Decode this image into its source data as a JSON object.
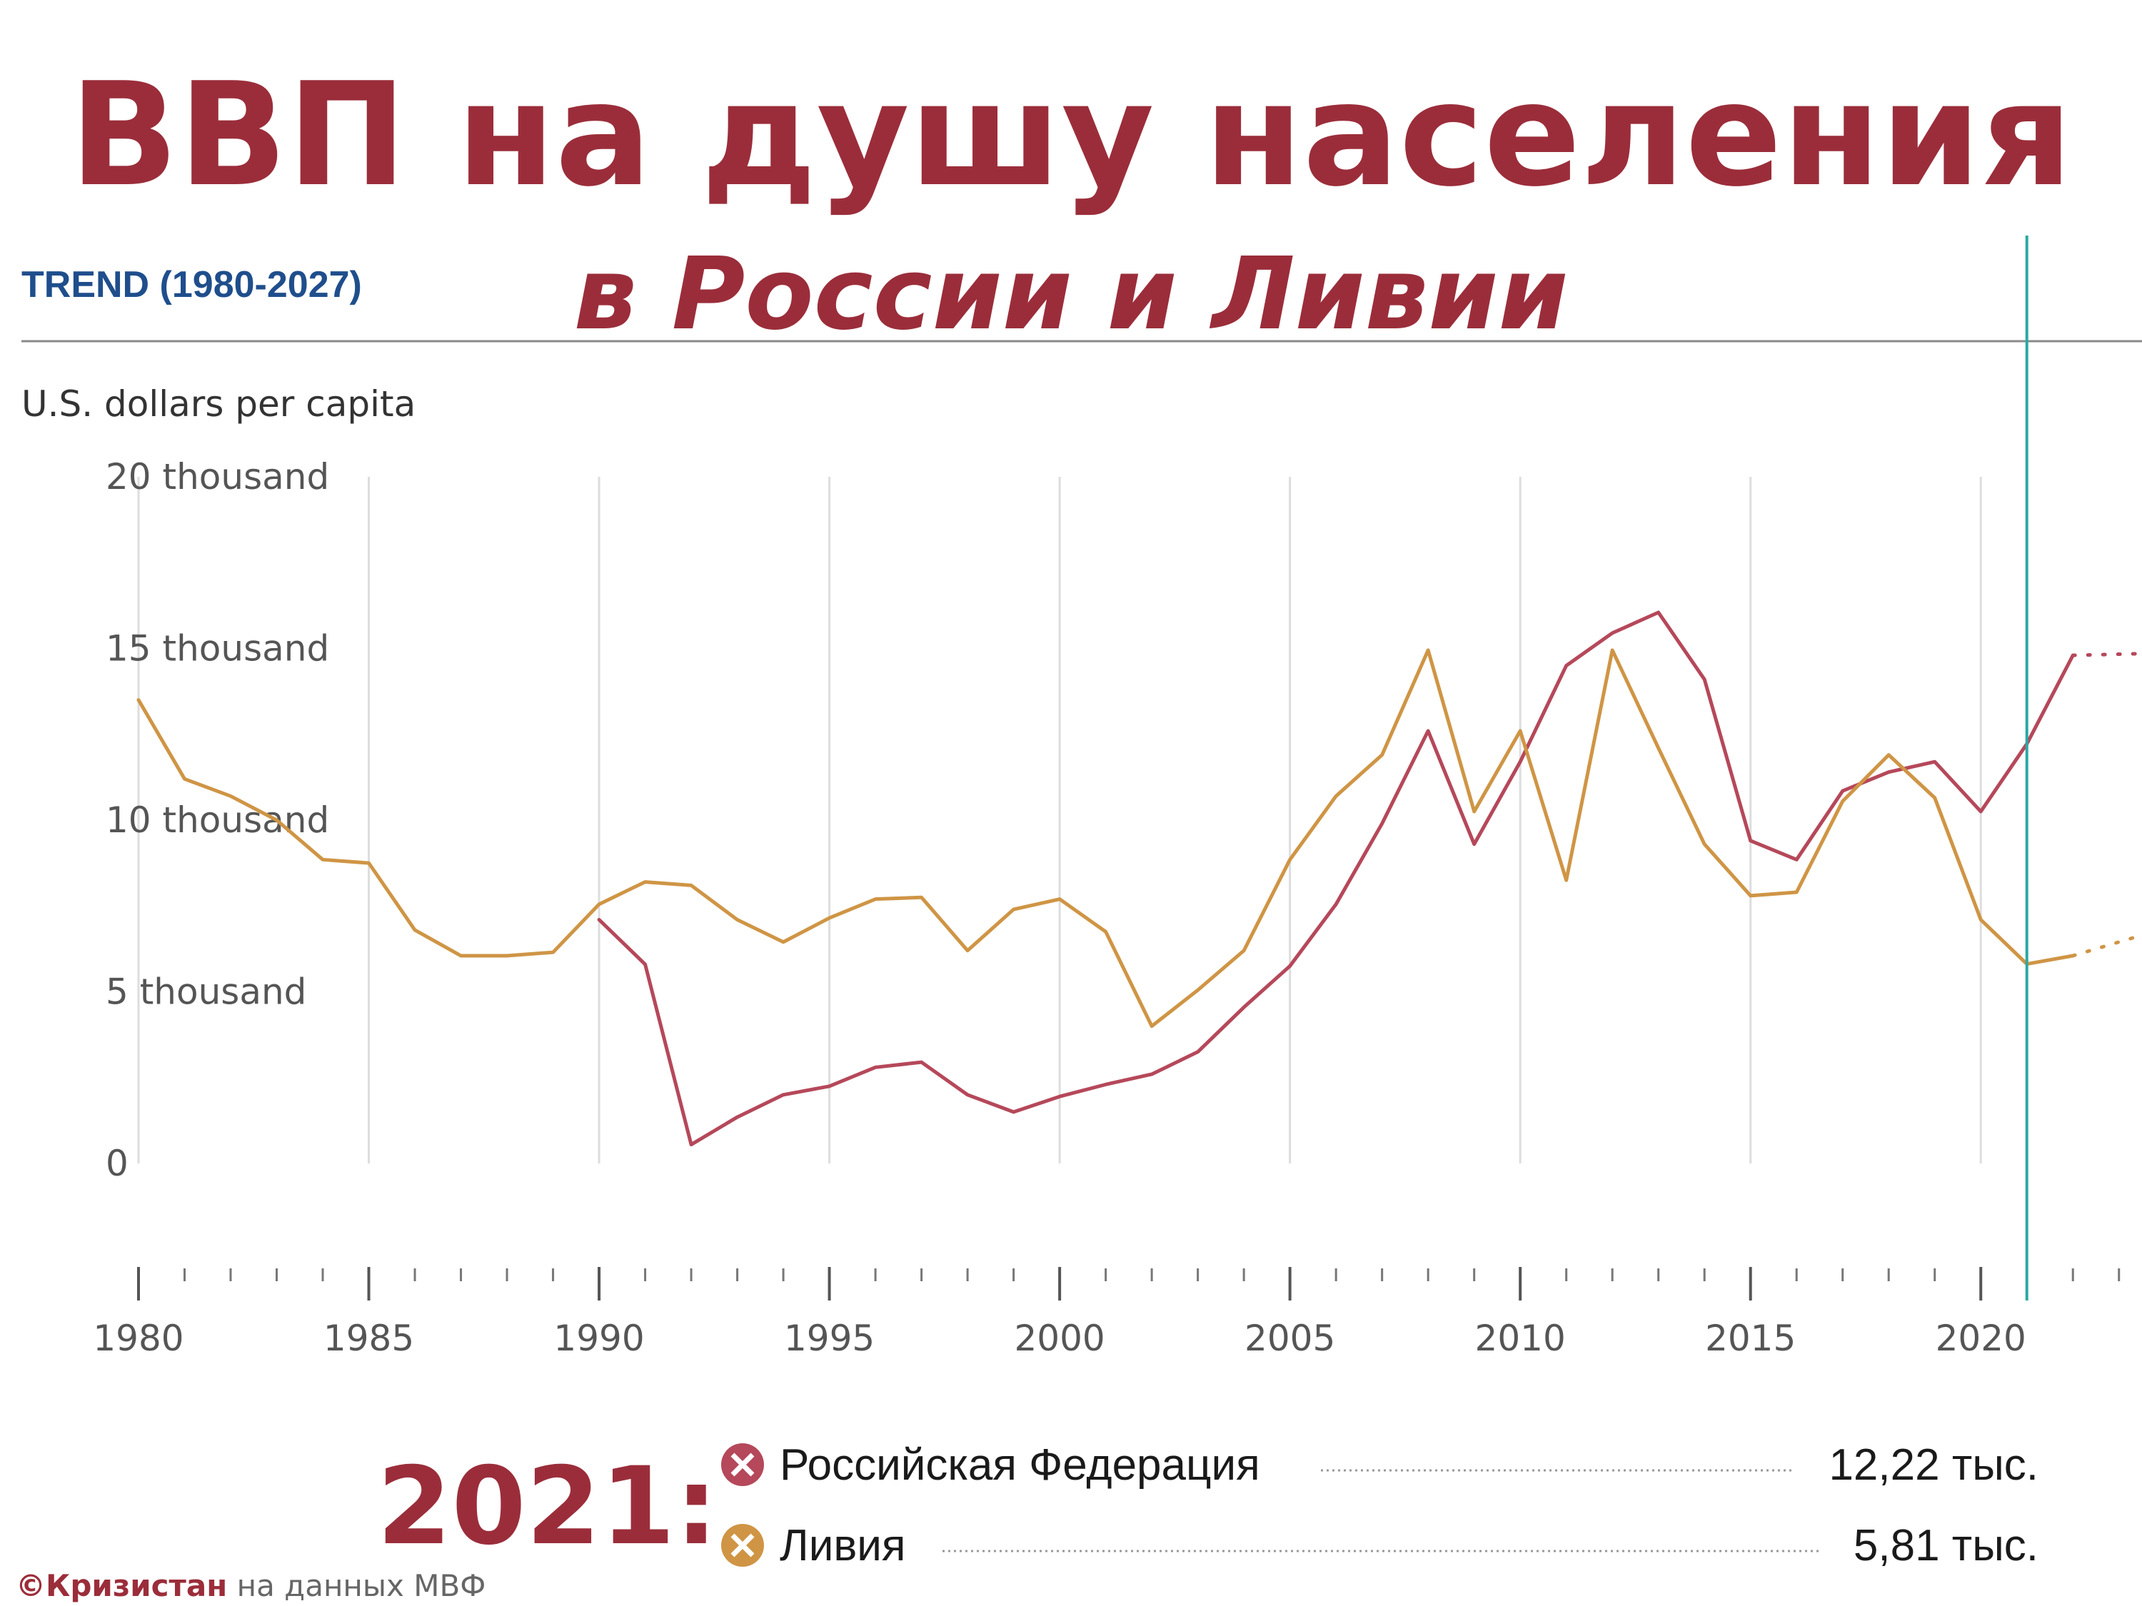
{
  "header": {
    "title": "ВВП на душу населения",
    "subtitle": "в России и Ливии",
    "trend_label": "TREND (1980-2027)"
  },
  "colors": {
    "title": "#9b2d3a",
    "trend": "#1f4e8c",
    "russia": "#b5485a",
    "libya": "#cf9545",
    "marker_line": "#2aa9a5",
    "grid": "#dddddd",
    "axis_text": "#555555"
  },
  "summary": {
    "year_label": "2021:",
    "items": [
      {
        "icon": "x-circle-icon",
        "name": "Российская Федерация",
        "value": "12,22 тыс."
      },
      {
        "icon": "x-circle-icon",
        "name": "Ливия",
        "value": "5,81 тыс."
      }
    ]
  },
  "credit": {
    "brand": "©Кризистан",
    "source": " на данных МВФ"
  },
  "chart_data": {
    "type": "line",
    "ylabel": "U.S. dollars per capita",
    "ylim": [
      0,
      20000
    ],
    "yticks": [
      {
        "value": 0,
        "label": "0"
      },
      {
        "value": 5000,
        "label": "5 thousand"
      },
      {
        "value": 10000,
        "label": "10 thousand"
      },
      {
        "value": 15000,
        "label": "15 thousand"
      },
      {
        "value": 20000,
        "label": "20 thousand"
      }
    ],
    "xlim": [
      1980,
      2023.5
    ],
    "xticks": [
      1980,
      1985,
      1990,
      1995,
      2000,
      2005,
      2010,
      2015,
      2020
    ],
    "marker_year": 2021,
    "grid": true,
    "series": [
      {
        "name": "Российская Федерация",
        "color": "#b5485a",
        "x": [
          1990,
          1991,
          1992,
          1993,
          1994,
          1995,
          1996,
          1997,
          1998,
          1999,
          2000,
          2001,
          2002,
          2003,
          2004,
          2005,
          2006,
          2007,
          2008,
          2009,
          2010,
          2011,
          2012,
          2013,
          2014,
          2015,
          2016,
          2017,
          2018,
          2019,
          2020,
          2021,
          2022
        ],
        "values": [
          7100,
          5800,
          550,
          1350,
          2000,
          2250,
          2800,
          2950,
          2000,
          1500,
          1950,
          2300,
          2600,
          3250,
          4550,
          5750,
          7550,
          9900,
          12600,
          9300,
          11700,
          14500,
          15450,
          16050,
          14100,
          9400,
          8850,
          10850,
          11400,
          11700,
          10250,
          12220,
          14800
        ],
        "projection_x": [
          2022,
          2023.5
        ],
        "projection_values": [
          14800,
          14850
        ]
      },
      {
        "name": "Ливия",
        "color": "#cf9545",
        "x": [
          1980,
          1981,
          1982,
          1983,
          1984,
          1985,
          1986,
          1987,
          1988,
          1989,
          1990,
          1991,
          1992,
          1993,
          1994,
          1995,
          1996,
          1997,
          1998,
          1999,
          2000,
          2001,
          2002,
          2003,
          2004,
          2005,
          2006,
          2007,
          2008,
          2009,
          2010,
          2011,
          2012,
          2013,
          2014,
          2015,
          2016,
          2017,
          2018,
          2019,
          2020,
          2021,
          2022
        ],
        "values": [
          13500,
          11200,
          10700,
          10000,
          8850,
          8750,
          6800,
          6050,
          6050,
          6150,
          7550,
          8200,
          8100,
          7100,
          6450,
          7150,
          7700,
          7750,
          6200,
          7400,
          7700,
          6750,
          4000,
          5050,
          6200,
          8850,
          10700,
          11900,
          14950,
          10250,
          12600,
          8250,
          14950,
          12100,
          9300,
          7800,
          7900,
          10550,
          11900,
          10650,
          7100,
          5810,
          6050
        ],
        "projection_x": [
          2022,
          2023.5
        ],
        "projection_values": [
          6050,
          6650
        ]
      }
    ]
  }
}
